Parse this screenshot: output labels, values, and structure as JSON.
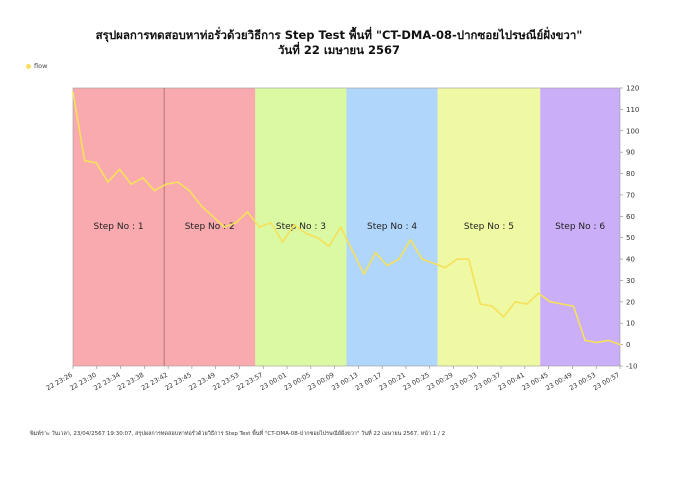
{
  "chart_title_line1": "สรุปผลการทดสอบหาท่อรั่วด้วยวิธีการ Step Test พื้นที่ \"CT-DMA-08-ปากซอยไปรษณีย์ฝั่งขวา\"",
  "chart_title_line2": "วันที่ 22 เมษายน 2567",
  "legend_label": "flow",
  "footer_text": "พิมพ์ราะ วันเวลา, 23/04/2567 19:30:07, สรุปผลการทดสอบหาท่อรั่วด้วยวิธีการ Step Test พื้นที่ \"CT-DMA-08-ปากซอยไปรษณีย์ฝั่งขวา\" วันที่ 22 เมษายน 2567, หน้า 1 / 2",
  "colors": {
    "line": "#f5e15a",
    "step1": "#f8a3a8",
    "step2": "#f8a3a8",
    "step3": "#d8f79a",
    "step4": "#a9d2fb",
    "step5": "#eef79a",
    "step6": "#c6a7f6",
    "divider": "#9a6a70"
  },
  "chart_data": {
    "type": "line",
    "title": "สรุปผลการทดสอบหาท่อรั่วด้วยวิธีการ Step Test พื้นที่ \"CT-DMA-08-ปากซอยไปรษณีย์ฝั่งขวา\"",
    "subtitle": "วันที่ 22 เมษายน 2567",
    "ylim": [
      -10,
      120
    ],
    "y_ticks": [
      -10,
      0,
      10,
      20,
      30,
      40,
      50,
      60,
      70,
      80,
      90,
      100,
      110,
      120
    ],
    "x_tick_labels": [
      "22 23:26",
      "22 23:30",
      "22 23:34",
      "22 23:38",
      "22 23:42",
      "22 23:45",
      "22 23:49",
      "22 23:53",
      "22 23:57",
      "23 00:01",
      "23 00:05",
      "23 00:09",
      "23 00:13",
      "23 00:17",
      "23 00:21",
      "23 00:25",
      "23 00:29",
      "23 00:33",
      "23 00:37",
      "23 00:41",
      "23 00:45",
      "23 00:49",
      "23 00:53",
      "23 00:57"
    ],
    "legend_position": "top-left",
    "grid": false,
    "steps": [
      {
        "label": "Step No : 1",
        "start": 0,
        "end": 8,
        "color_key": "step1"
      },
      {
        "label": "Step No : 2",
        "start": 8,
        "end": 16,
        "color_key": "step2"
      },
      {
        "label": "Step No : 3",
        "start": 16,
        "end": 24,
        "color_key": "step3"
      },
      {
        "label": "Step No : 4",
        "start": 24,
        "end": 32,
        "color_key": "step4"
      },
      {
        "label": "Step No : 5",
        "start": 32,
        "end": 41,
        "color_key": "step5"
      },
      {
        "label": "Step No : 6",
        "start": 41,
        "end": 48,
        "color_key": "step6"
      }
    ],
    "series": [
      {
        "name": "flow",
        "values": [
          118,
          86,
          85,
          76,
          82,
          75,
          78,
          72,
          75,
          76,
          72,
          65,
          60,
          55,
          57,
          62,
          55,
          57,
          48,
          56,
          52,
          50,
          46,
          55,
          44,
          33,
          43,
          37,
          40,
          49,
          40,
          38,
          36,
          40,
          40,
          19,
          18,
          13,
          20,
          19,
          24,
          20,
          19,
          18,
          2,
          1,
          2,
          0
        ]
      }
    ]
  }
}
